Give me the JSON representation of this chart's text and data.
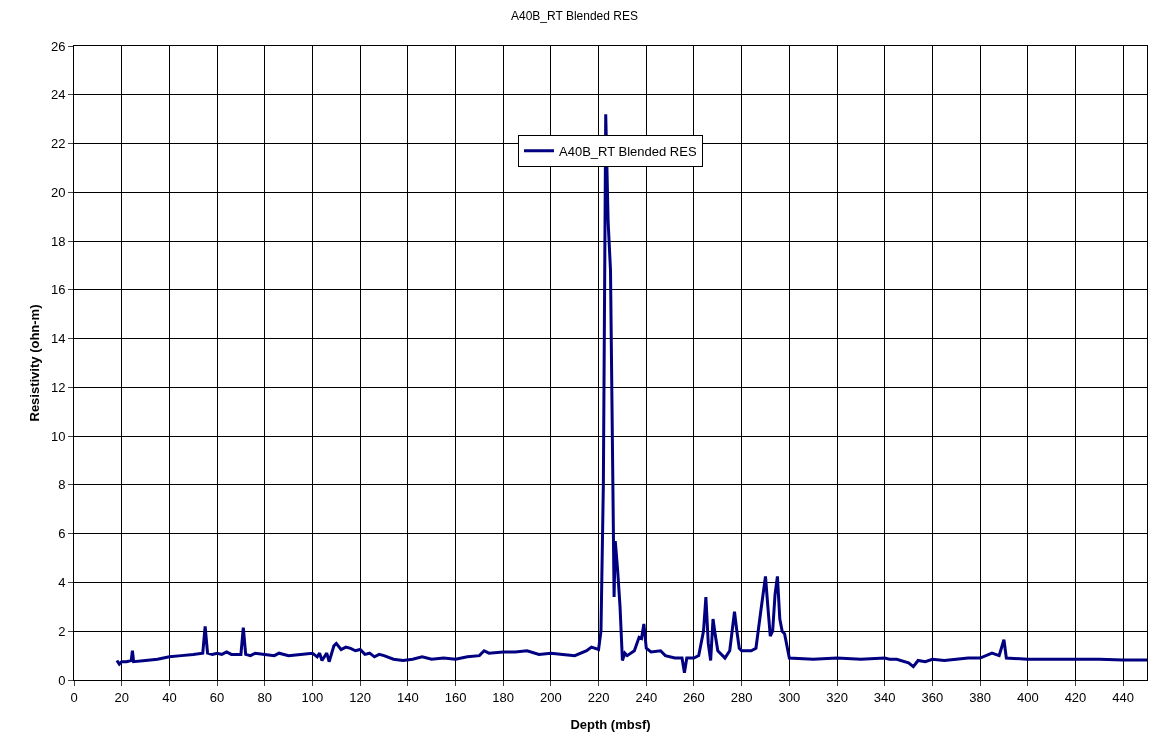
{
  "chart_data": {
    "type": "line",
    "title": "A40B_RT Blended RES",
    "xlabel": "Depth (mbsf)",
    "ylabel": "Resistivity (ohn-m)",
    "xlim": [
      0,
      450
    ],
    "xticks": [
      0,
      20,
      40,
      60,
      80,
      100,
      120,
      140,
      160,
      180,
      200,
      220,
      240,
      260,
      280,
      300,
      320,
      340,
      360,
      380,
      400,
      420,
      440
    ],
    "ylim": [
      0,
      26
    ],
    "yticks": [
      0,
      2,
      4,
      6,
      8,
      10,
      12,
      14,
      16,
      18,
      20,
      22,
      24,
      26
    ],
    "grid": true,
    "legend": "top",
    "marker": "none",
    "line_style": "solid",
    "series": [
      {
        "name": "A40B_RT Blended RES",
        "color": "#000080",
        "x": [
          18,
          19,
          20,
          22,
          24,
          24.5,
          25,
          30,
          35,
          40,
          45,
          50,
          54,
          55,
          56,
          58,
          60,
          62,
          64,
          66,
          70,
          71,
          72,
          74,
          76,
          80,
          84,
          86,
          90,
          95,
          100,
          102,
          103,
          104,
          106,
          107,
          109,
          110,
          112,
          114,
          116,
          118,
          120,
          122,
          124,
          126,
          128,
          130,
          134,
          138,
          142,
          146,
          150,
          155,
          160,
          165,
          170,
          172,
          174,
          180,
          185,
          190,
          195,
          200,
          205,
          210,
          215,
          217,
          220,
          221,
          222,
          223,
          224,
          225,
          226,
          226.5,
          227,
          228,
          229,
          230,
          231,
          232,
          235,
          237,
          238,
          239,
          240,
          242,
          246,
          248,
          252,
          255,
          256,
          257,
          260,
          262,
          264,
          265,
          266,
          267,
          268,
          269,
          270,
          273,
          275,
          277,
          278,
          279,
          280,
          284,
          286,
          288,
          290,
          291,
          292,
          293,
          294,
          295,
          296,
          297,
          298,
          300,
          310,
          320,
          330,
          340,
          342,
          345,
          350,
          352,
          354,
          357,
          360,
          365,
          370,
          375,
          380,
          385,
          388,
          390,
          391,
          400,
          410,
          420,
          430,
          440,
          450
        ],
        "values": [
          0.8,
          0.65,
          0.75,
          0.75,
          0.8,
          1.2,
          0.75,
          0.8,
          0.85,
          0.95,
          1.0,
          1.05,
          1.1,
          2.2,
          1.1,
          1.05,
          1.1,
          1.05,
          1.15,
          1.05,
          1.05,
          2.15,
          1.05,
          1.0,
          1.1,
          1.05,
          1.0,
          1.1,
          1.0,
          1.05,
          1.1,
          0.95,
          1.1,
          0.8,
          1.1,
          0.75,
          1.4,
          1.5,
          1.25,
          1.35,
          1.3,
          1.2,
          1.25,
          1.05,
          1.1,
          0.95,
          1.05,
          1.0,
          0.85,
          0.8,
          0.85,
          0.95,
          0.85,
          0.9,
          0.85,
          0.95,
          1.0,
          1.2,
          1.1,
          1.15,
          1.15,
          1.2,
          1.05,
          1.1,
          1.05,
          1.0,
          1.2,
          1.35,
          1.25,
          2.0,
          8,
          23.2,
          18.8,
          16.8,
          8,
          3.4,
          5.7,
          4.5,
          3.0,
          0.8,
          1.1,
          1.0,
          1.2,
          1.75,
          1.7,
          2.3,
          1.3,
          1.15,
          1.2,
          1.0,
          0.9,
          0.9,
          0.3,
          0.9,
          0.9,
          1.0,
          2.0,
          3.4,
          1.5,
          0.8,
          2.5,
          1.8,
          1.2,
          0.9,
          1.2,
          2.8,
          2.0,
          1.3,
          1.2,
          1.2,
          1.3,
          2.8,
          4.25,
          3.0,
          1.8,
          2.0,
          3.5,
          4.25,
          2.5,
          2.0,
          1.9,
          0.9,
          0.85,
          0.9,
          0.85,
          0.9,
          0.85,
          0.85,
          0.7,
          0.55,
          0.8,
          0.75,
          0.85,
          0.8,
          0.85,
          0.9,
          0.9,
          1.1,
          1.0,
          1.65,
          0.9,
          0.85,
          0.85,
          0.85,
          0.85,
          0.82,
          0.82
        ]
      }
    ]
  }
}
